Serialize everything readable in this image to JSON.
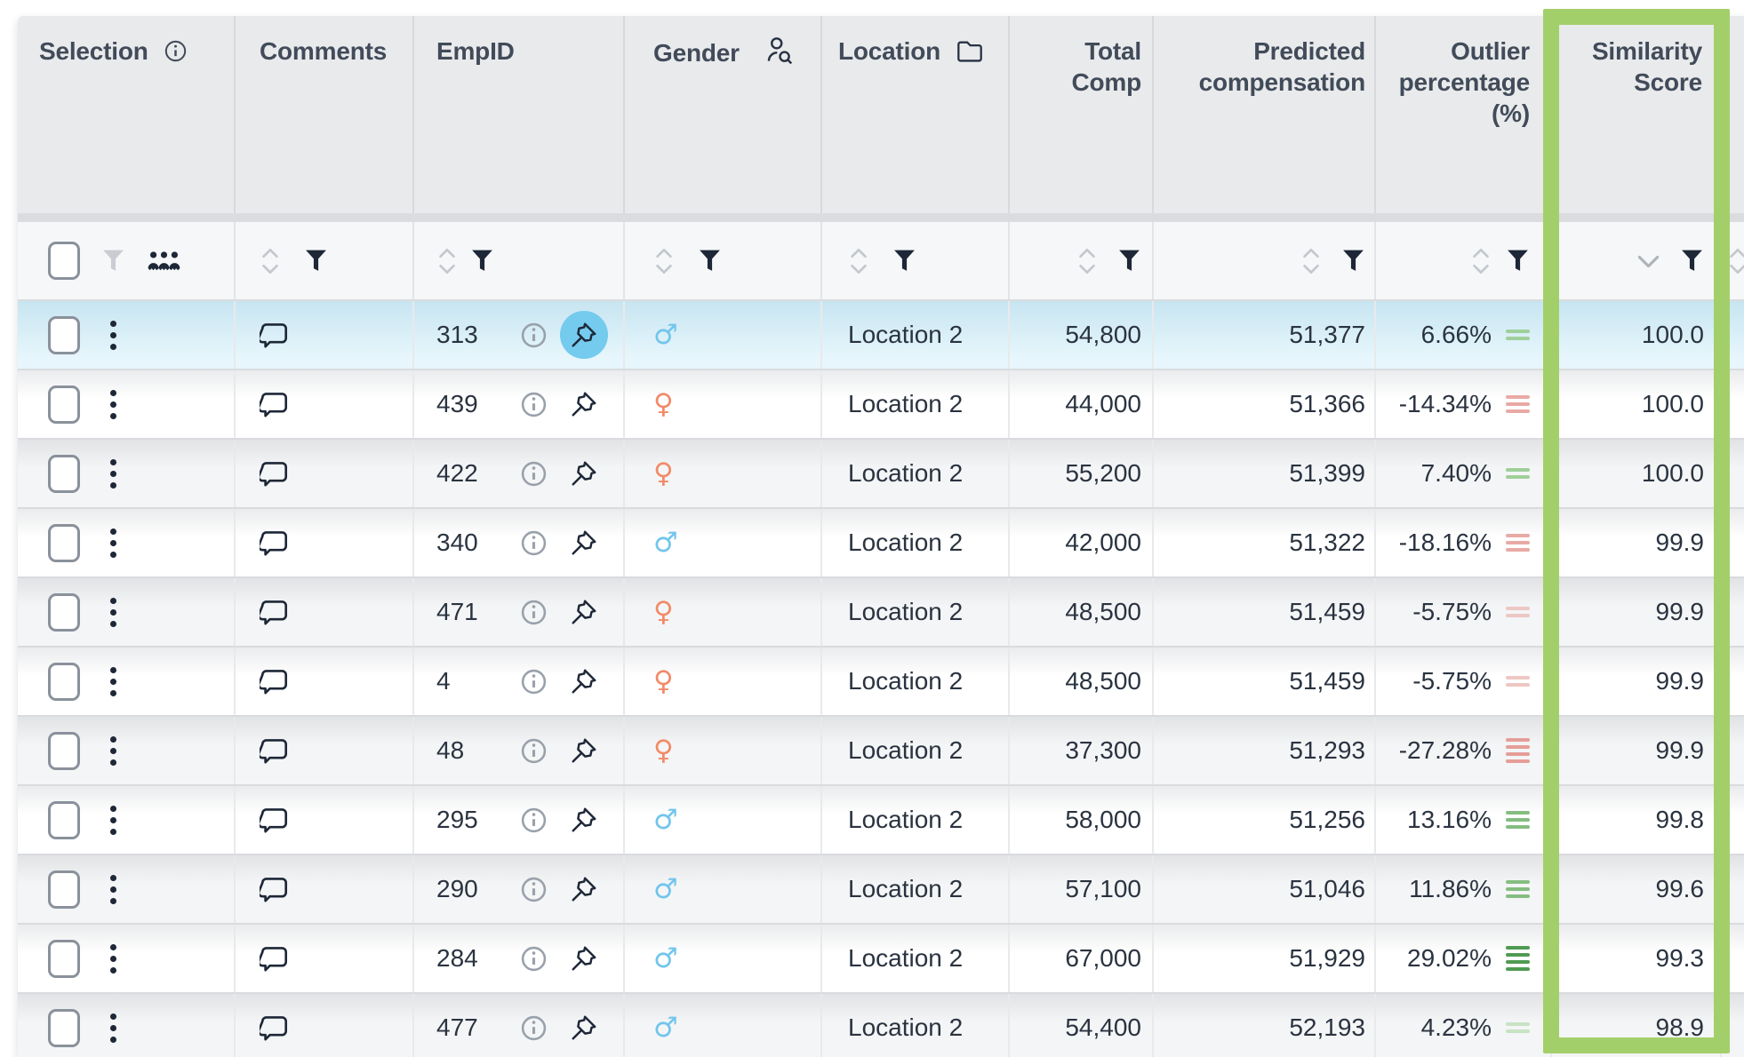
{
  "header": {
    "columns": [
      {
        "id": "selection",
        "label": "Selection"
      },
      {
        "id": "comments",
        "label": "Comments"
      },
      {
        "id": "empid",
        "label": "EmpID"
      },
      {
        "id": "gender",
        "label": "Gender"
      },
      {
        "id": "location",
        "label": "Location"
      },
      {
        "id": "total_comp",
        "label": "Total Comp"
      },
      {
        "id": "predicted_compensation",
        "label": "Predicted compensation"
      },
      {
        "id": "outlier_percentage",
        "label": "Outlier percentage (%)"
      },
      {
        "id": "similarity_score",
        "label": "Similarity Score"
      }
    ],
    "highlighted_column": "similarity_score",
    "sort": {
      "similarity_score": "desc"
    }
  },
  "gender_symbols": {
    "male": "♂",
    "female": "♀"
  },
  "rows": [
    {
      "empid": "313",
      "gender": "male",
      "location": "Location 2",
      "total_comp": "54,800",
      "predicted_compensation": "51,377",
      "outlier_percentage": "6.66%",
      "outlier_bars": 2,
      "outlier_color": "#9fcf9a",
      "similarity_score": "100.0",
      "selected": true,
      "pinned": true
    },
    {
      "empid": "439",
      "gender": "female",
      "location": "Location 2",
      "total_comp": "44,000",
      "predicted_compensation": "51,366",
      "outlier_percentage": "-14.34%",
      "outlier_bars": 3,
      "outlier_color": "#e8aaa5",
      "similarity_score": "100.0",
      "selected": false,
      "pinned": false
    },
    {
      "empid": "422",
      "gender": "female",
      "location": "Location 2",
      "total_comp": "55,200",
      "predicted_compensation": "51,399",
      "outlier_percentage": "7.40%",
      "outlier_bars": 2,
      "outlier_color": "#9fcf9a",
      "similarity_score": "100.0",
      "selected": false,
      "pinned": false
    },
    {
      "empid": "340",
      "gender": "male",
      "location": "Location 2",
      "total_comp": "42,000",
      "predicted_compensation": "51,322",
      "outlier_percentage": "-18.16%",
      "outlier_bars": 3,
      "outlier_color": "#e8aaa5",
      "similarity_score": "99.9",
      "selected": false,
      "pinned": false
    },
    {
      "empid": "471",
      "gender": "female",
      "location": "Location 2",
      "total_comp": "48,500",
      "predicted_compensation": "51,459",
      "outlier_percentage": "-5.75%",
      "outlier_bars": 2,
      "outlier_color": "#edc7c3",
      "similarity_score": "99.9",
      "selected": false,
      "pinned": false
    },
    {
      "empid": "4",
      "gender": "female",
      "location": "Location 2",
      "total_comp": "48,500",
      "predicted_compensation": "51,459",
      "outlier_percentage": "-5.75%",
      "outlier_bars": 2,
      "outlier_color": "#edc7c3",
      "similarity_score": "99.9",
      "selected": false,
      "pinned": false
    },
    {
      "empid": "48",
      "gender": "female",
      "location": "Location 2",
      "total_comp": "37,300",
      "predicted_compensation": "51,293",
      "outlier_percentage": "-27.28%",
      "outlier_bars": 4,
      "outlier_color": "#e59e98",
      "similarity_score": "99.9",
      "selected": false,
      "pinned": false
    },
    {
      "empid": "295",
      "gender": "male",
      "location": "Location 2",
      "total_comp": "58,000",
      "predicted_compensation": "51,256",
      "outlier_percentage": "13.16%",
      "outlier_bars": 3,
      "outlier_color": "#85bd81",
      "similarity_score": "99.8",
      "selected": false,
      "pinned": false
    },
    {
      "empid": "290",
      "gender": "male",
      "location": "Location 2",
      "total_comp": "57,100",
      "predicted_compensation": "51,046",
      "outlier_percentage": "11.86%",
      "outlier_bars": 3,
      "outlier_color": "#85bd81",
      "similarity_score": "99.6",
      "selected": false,
      "pinned": false
    },
    {
      "empid": "284",
      "gender": "male",
      "location": "Location 2",
      "total_comp": "67,000",
      "predicted_compensation": "51,929",
      "outlier_percentage": "29.02%",
      "outlier_bars": 4,
      "outlier_color": "#4f9b52",
      "similarity_score": "99.3",
      "selected": false,
      "pinned": false
    },
    {
      "empid": "477",
      "gender": "male",
      "location": "Location 2",
      "total_comp": "54,400",
      "predicted_compensation": "52,193",
      "outlier_percentage": "4.23%",
      "outlier_bars": 2,
      "outlier_color": "#c8e3c3",
      "similarity_score": "98.9",
      "selected": false,
      "pinned": false
    }
  ],
  "colors": {
    "highlight_border": "#a3cf6a",
    "male_icon": "#71c5ec",
    "female_icon": "#f28a67",
    "pin_highlight_circle": "#74cbee",
    "header_bg": "#e9eaec",
    "selected_row_top": "#c7e5f1",
    "selected_row_bottom": "#e7f6fc",
    "positive_outlier": "#4f9b52",
    "negative_outlier": "#e59e98"
  }
}
